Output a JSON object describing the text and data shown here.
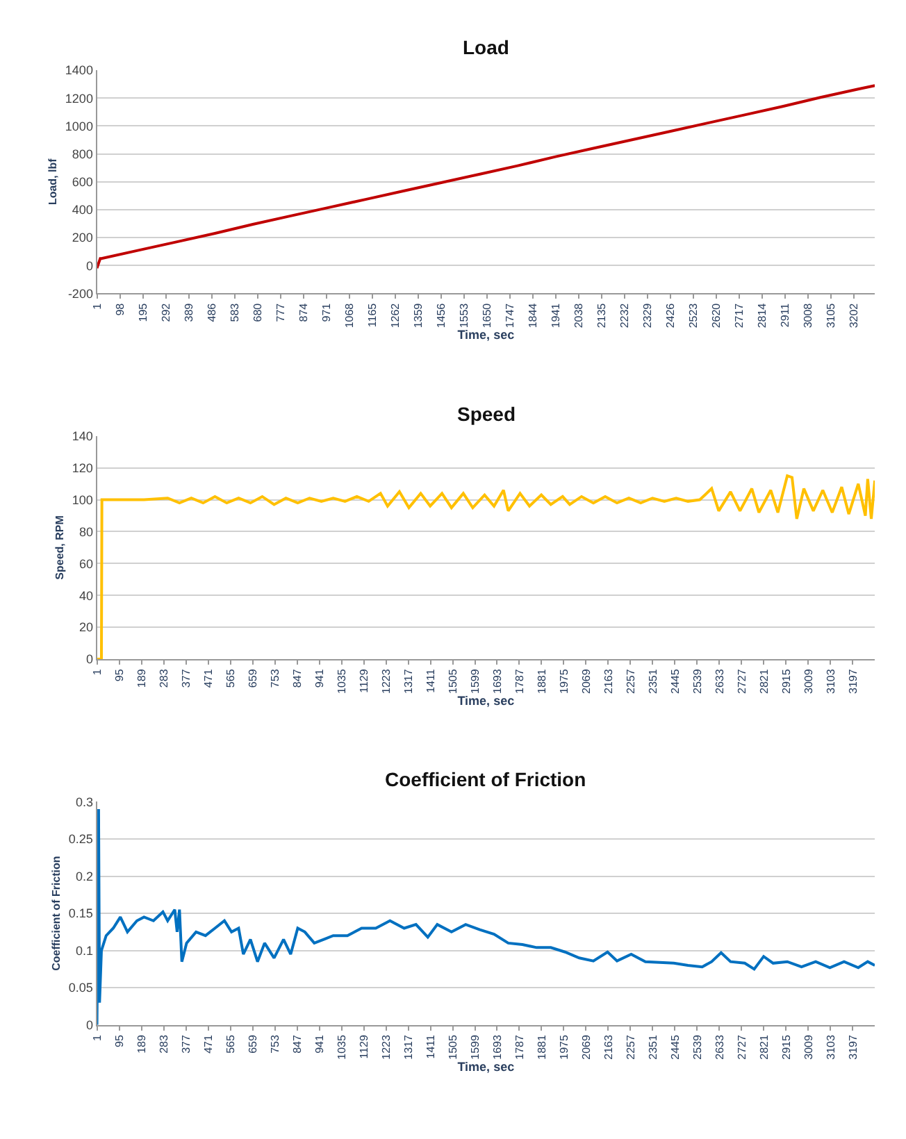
{
  "chart_data": [
    {
      "type": "line",
      "title": "Load",
      "xlabel": "Time, sec",
      "ylabel": "Load, lbf",
      "grid": "y",
      "x": [
        1,
        15,
        20,
        180,
        340,
        500,
        660,
        820,
        980,
        1140,
        1300,
        1460,
        1620,
        1780,
        1940,
        2100,
        2260,
        2420,
        2580,
        2740,
        2900,
        3060,
        3220,
        3290
      ],
      "series": [
        {
          "color": "#c00000",
          "values": [
            -20,
            50,
            50,
            110,
            170,
            230,
            295,
            355,
            415,
            475,
            535,
            595,
            655,
            715,
            780,
            840,
            900,
            960,
            1020,
            1080,
            1140,
            1205,
            1265,
            1290
          ]
        }
      ],
      "xlim": [
        1,
        3290
      ],
      "xticks": [
        1,
        98,
        195,
        292,
        389,
        486,
        583,
        680,
        777,
        874,
        971,
        1068,
        1165,
        1262,
        1359,
        1456,
        1553,
        1650,
        1747,
        1844,
        1941,
        2038,
        2135,
        2232,
        2329,
        2426,
        2523,
        2620,
        2717,
        2814,
        2911,
        3008,
        3105,
        3202
      ],
      "ylim": [
        -200,
        1400
      ],
      "yticks": [
        -200,
        0,
        200,
        400,
        600,
        800,
        1000,
        1200,
        1400
      ]
    },
    {
      "type": "line",
      "title": "Speed",
      "xlabel": "Time, sec",
      "ylabel": "Speed, RPM",
      "grid": "y",
      "x": [
        1,
        20,
        22,
        100,
        200,
        300,
        350,
        400,
        450,
        500,
        550,
        600,
        650,
        700,
        750,
        800,
        850,
        900,
        950,
        1000,
        1050,
        1100,
        1150,
        1200,
        1230,
        1280,
        1320,
        1370,
        1410,
        1460,
        1500,
        1550,
        1590,
        1640,
        1680,
        1720,
        1740,
        1790,
        1830,
        1880,
        1920,
        1970,
        2000,
        2050,
        2100,
        2150,
        2200,
        2250,
        2300,
        2350,
        2400,
        2450,
        2500,
        2550,
        2600,
        2630,
        2680,
        2720,
        2770,
        2800,
        2850,
        2880,
        2920,
        2940,
        2960,
        2990,
        3030,
        3070,
        3110,
        3150,
        3180,
        3220,
        3250,
        3260,
        3275,
        3290
      ],
      "series": [
        {
          "color": "#ffc000",
          "values": [
            0,
            0,
            100,
            100,
            100,
            101,
            98,
            101,
            98,
            102,
            98,
            101,
            98,
            102,
            97,
            101,
            98,
            101,
            99,
            101,
            99,
            102,
            99,
            104,
            96,
            105,
            95,
            104,
            96,
            104,
            95,
            104,
            95,
            103,
            96,
            106,
            93,
            104,
            96,
            103,
            97,
            102,
            97,
            102,
            98,
            102,
            98,
            101,
            98,
            101,
            99,
            101,
            99,
            100,
            107,
            93,
            105,
            93,
            107,
            92,
            106,
            92,
            115,
            114,
            88,
            107,
            93,
            106,
            92,
            108,
            91,
            110,
            90,
            113,
            88,
            112
          ]
        }
      ],
      "xlim": [
        1,
        3290
      ],
      "xticks": [
        1,
        95,
        189,
        283,
        377,
        471,
        565,
        659,
        753,
        847,
        941,
        1035,
        1129,
        1223,
        1317,
        1411,
        1505,
        1599,
        1693,
        1787,
        1881,
        1975,
        2069,
        2163,
        2257,
        2351,
        2445,
        2539,
        2633,
        2727,
        2821,
        2915,
        3009,
        3103,
        3197
      ],
      "ylim": [
        0,
        140
      ],
      "yticks": [
        0,
        20,
        40,
        60,
        80,
        100,
        120,
        140
      ]
    },
    {
      "type": "line",
      "title": "Coefficient of Friction",
      "xlabel": "Time, sec",
      "ylabel": "Coefficient of Friction",
      "grid": "y",
      "x": [
        1,
        8,
        12,
        20,
        40,
        70,
        100,
        130,
        170,
        200,
        240,
        280,
        300,
        330,
        340,
        350,
        360,
        380,
        420,
        460,
        500,
        540,
        570,
        600,
        620,
        650,
        680,
        710,
        750,
        790,
        820,
        850,
        880,
        920,
        960,
        1000,
        1060,
        1120,
        1180,
        1240,
        1300,
        1350,
        1400,
        1440,
        1500,
        1560,
        1620,
        1680,
        1740,
        1800,
        1860,
        1920,
        1980,
        2040,
        2100,
        2160,
        2200,
        2260,
        2320,
        2380,
        2440,
        2500,
        2560,
        2600,
        2640,
        2680,
        2740,
        2780,
        2820,
        2860,
        2920,
        2980,
        3040,
        3100,
        3160,
        3220,
        3260,
        3290
      ],
      "series": [
        {
          "color": "#0070c0",
          "values": [
            0,
            0.29,
            0.03,
            0.1,
            0.12,
            0.13,
            0.145,
            0.125,
            0.14,
            0.145,
            0.14,
            0.152,
            0.14,
            0.155,
            0.125,
            0.155,
            0.085,
            0.11,
            0.125,
            0.12,
            0.13,
            0.14,
            0.125,
            0.13,
            0.095,
            0.115,
            0.085,
            0.11,
            0.09,
            0.115,
            0.095,
            0.13,
            0.125,
            0.11,
            0.115,
            0.12,
            0.12,
            0.13,
            0.13,
            0.14,
            0.13,
            0.135,
            0.118,
            0.135,
            0.125,
            0.135,
            0.128,
            0.122,
            0.11,
            0.108,
            0.104,
            0.104,
            0.098,
            0.09,
            0.086,
            0.098,
            0.086,
            0.095,
            0.085,
            0.084,
            0.083,
            0.08,
            0.078,
            0.085,
            0.097,
            0.085,
            0.083,
            0.075,
            0.092,
            0.083,
            0.085,
            0.078,
            0.085,
            0.077,
            0.085,
            0.077,
            0.085,
            0.08
          ]
        }
      ],
      "xlim": [
        1,
        3290
      ],
      "xticks": [
        1,
        95,
        189,
        283,
        377,
        471,
        565,
        659,
        753,
        847,
        941,
        1035,
        1129,
        1223,
        1317,
        1411,
        1505,
        1599,
        1693,
        1787,
        1881,
        1975,
        2069,
        2163,
        2257,
        2351,
        2445,
        2539,
        2633,
        2727,
        2821,
        2915,
        3009,
        3103,
        3197
      ],
      "ylim": [
        0,
        0.3
      ],
      "yticks": [
        0,
        0.05,
        0.1,
        0.15,
        0.2,
        0.25,
        0.3
      ]
    }
  ]
}
